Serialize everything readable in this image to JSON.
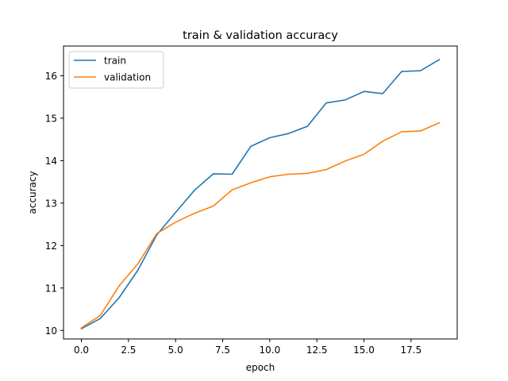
{
  "chart_data": {
    "type": "line",
    "title": "train & validation accuracy",
    "xlabel": "epoch",
    "ylabel": "accuracy",
    "xlim": [
      -0.95,
      19.95
    ],
    "ylim": [
      9.8,
      16.7
    ],
    "xticks": [
      0.0,
      2.5,
      5.0,
      7.5,
      10.0,
      12.5,
      15.0,
      17.5
    ],
    "xtick_labels": [
      "0.0",
      "2.5",
      "5.0",
      "7.5",
      "10.0",
      "12.5",
      "15.0",
      "17.5"
    ],
    "yticks": [
      10,
      11,
      12,
      13,
      14,
      15,
      16
    ],
    "ytick_labels": [
      "10",
      "11",
      "12",
      "13",
      "14",
      "15",
      "16"
    ],
    "grid": false,
    "legend_position": "upper-left",
    "x": [
      0,
      1,
      2,
      3,
      4,
      5,
      6,
      7,
      8,
      9,
      10,
      11,
      12,
      13,
      14,
      15,
      16,
      17,
      18,
      19
    ],
    "series": [
      {
        "name": "train",
        "color": "#1f77b4",
        "values": [
          10.04,
          10.28,
          10.77,
          11.42,
          12.25,
          12.78,
          13.3,
          13.69,
          13.68,
          14.34,
          14.54,
          14.64,
          14.81,
          15.36,
          15.43,
          15.63,
          15.58,
          16.1,
          16.12,
          16.38
        ]
      },
      {
        "name": "validation",
        "color": "#ff7f0e",
        "values": [
          10.06,
          10.35,
          11.05,
          11.57,
          12.28,
          12.55,
          12.76,
          12.93,
          13.31,
          13.48,
          13.62,
          13.68,
          13.7,
          13.79,
          13.99,
          14.15,
          14.46,
          14.68,
          14.7,
          14.89
        ]
      }
    ]
  }
}
